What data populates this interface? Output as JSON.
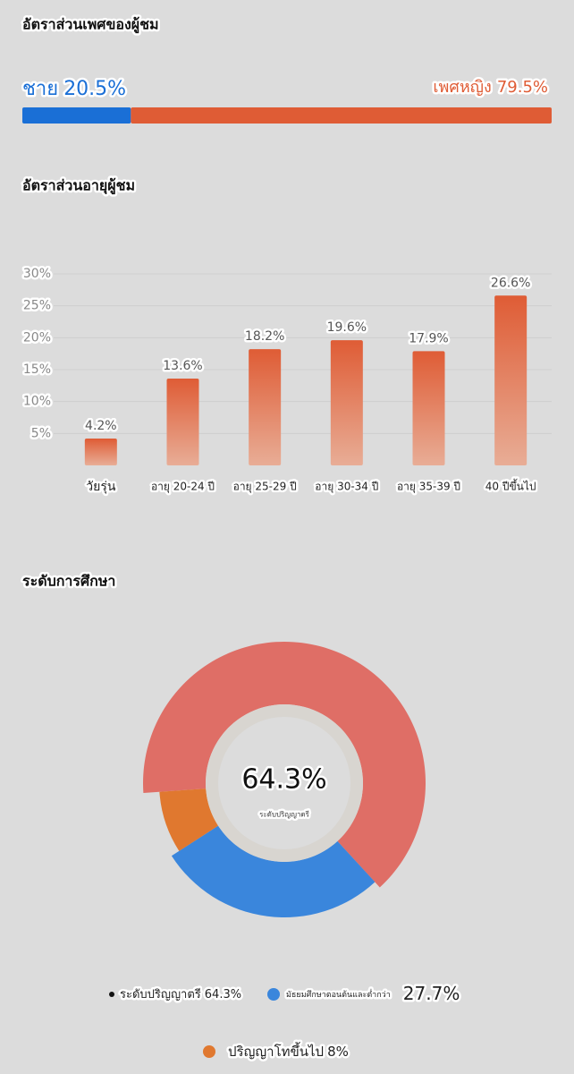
{
  "chart_data": [
    {
      "type": "stacked-bar",
      "title": "อัตราส่วนเพศของผู้ชม",
      "series": [
        {
          "name": "ชาย",
          "color": "#1a6fd6",
          "values": [
            20.5
          ],
          "value_labels": [
            "20.5%"
          ]
        },
        {
          "name": "เพศหญิง",
          "color": "#df5c35",
          "values": [
            79.5
          ],
          "value_labels": [
            "79.5%"
          ]
        }
      ]
    },
    {
      "type": "bar",
      "title": "อัตราส่วนอายุผู้ชม",
      "categories": [
        "วัยรุ่น",
        "อายุ 20-24 ปี",
        "อายุ 25-29 ปี",
        "อายุ 30-34 ปี",
        "อายุ 35-39 ปี",
        "40 ปีขึ้นไป"
      ],
      "values": [
        4.2,
        13.6,
        18.2,
        19.6,
        17.9,
        26.6
      ],
      "value_labels": [
        "4.2%",
        "13.6%",
        "18.2%",
        "19.6%",
        "17.9%",
        "26.6%"
      ],
      "color": "#df5c35",
      "ylim": [
        0,
        30
      ],
      "yticks": [
        {
          "value": 5,
          "label": "5%"
        },
        {
          "value": 10,
          "label": "10%"
        },
        {
          "value": 15,
          "label": "15%"
        },
        {
          "value": 20,
          "label": "20%"
        },
        {
          "value": 25,
          "label": "25%"
        },
        {
          "value": 30,
          "label": "30%"
        }
      ],
      "grid": true
    },
    {
      "type": "donut",
      "title": "ระดับการศึกษา",
      "categories": [
        "ระดับปริญญาตรี",
        "มัธยมศึกษาตอนต้นและต่ำกว่า",
        "ปริญญาโทขึ้นไป"
      ],
      "values": [
        64.3,
        27.7,
        8
      ],
      "value_labels": [
        "64.3%",
        "27.7%",
        "8%"
      ],
      "colors": [
        "#df6e66",
        "#3a86dc",
        "#e0782f"
      ]
    }
  ]
}
